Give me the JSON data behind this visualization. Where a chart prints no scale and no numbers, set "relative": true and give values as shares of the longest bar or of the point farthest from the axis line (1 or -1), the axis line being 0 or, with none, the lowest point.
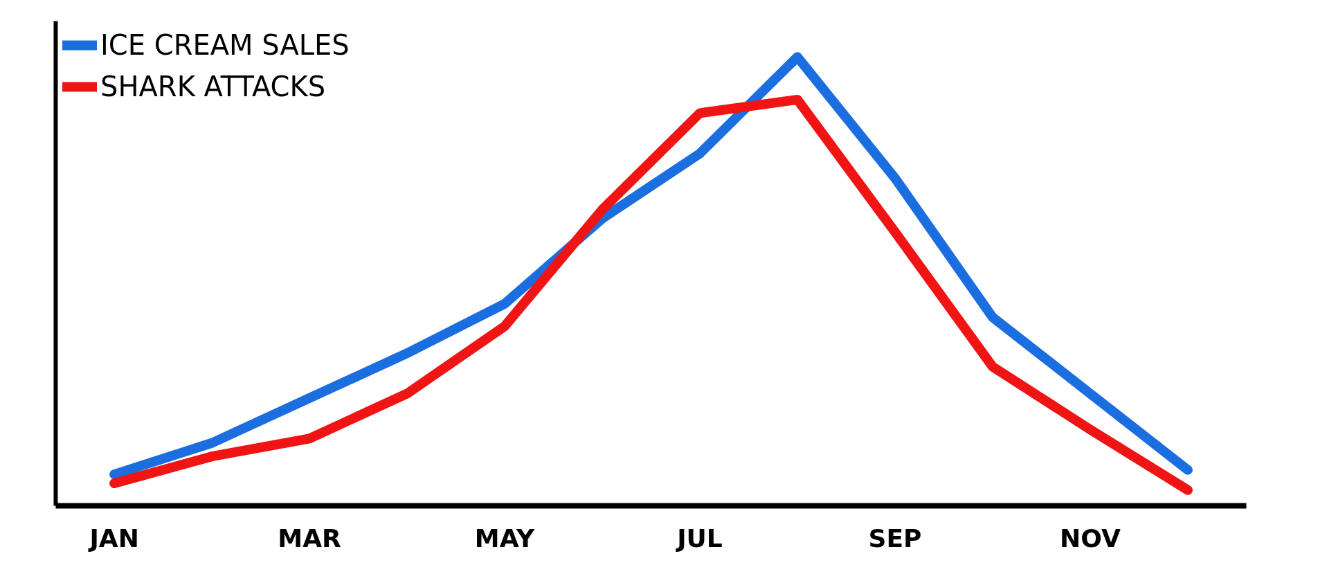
{
  "chart_data": {
    "type": "line",
    "relative": true,
    "tick_labels": "x",
    "legend": "top left",
    "grid": false,
    "line_style": "solid",
    "categories": [
      "JAN",
      null,
      "MAR",
      null,
      "MAY",
      null,
      "JUL",
      null,
      "SEP",
      null,
      "NOV",
      null
    ],
    "series": [
      {
        "name": "ICE CREAM SALES",
        "color": "#1a6ee0",
        "values": [
          0.07,
          0.14,
          0.24,
          0.34,
          0.45,
          0.64,
          0.785,
          1.0,
          0.73,
          0.42,
          0.25,
          0.08
        ]
      },
      {
        "name": "SHARK ATTACKS",
        "color": "#f01414",
        "values": [
          0.05,
          0.11,
          0.15,
          0.25,
          0.4,
          0.66,
          0.875,
          0.905,
          0.61,
          0.31,
          0.17,
          0.035
        ]
      }
    ]
  }
}
